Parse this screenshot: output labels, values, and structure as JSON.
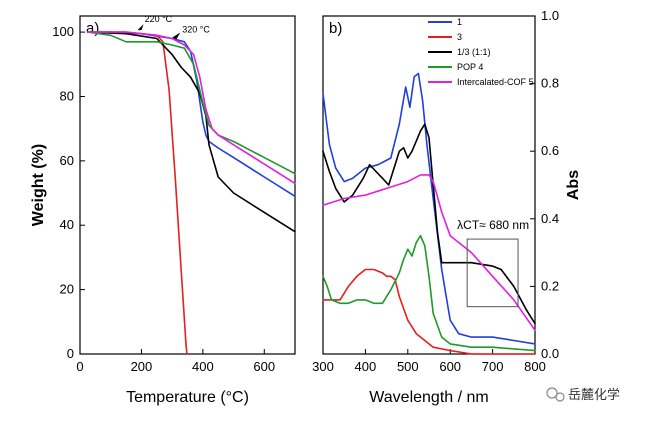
{
  "watermark": {
    "text": "岳麓化学"
  },
  "chart_data": [
    {
      "panel": "a)",
      "type": "line",
      "xlabel": "Temperature (°C)",
      "ylabel": "Weight (%)",
      "xlim": [
        0,
        700
      ],
      "ylim": [
        0,
        105
      ],
      "xticks": [
        0,
        200,
        400,
        600
      ],
      "yticks": [
        0,
        20,
        40,
        60,
        80,
        100
      ],
      "annotations": [
        {
          "text": "220 °C",
          "x": 220,
          "y": 100
        },
        {
          "text": "320 °C",
          "x": 320,
          "y": 98
        }
      ],
      "series": [
        {
          "name": "1",
          "color": "#1f3fe0",
          "x": [
            25,
            100,
            200,
            300,
            340,
            360,
            380,
            400,
            410,
            420,
            450,
            500,
            600,
            700
          ],
          "y": [
            100,
            100,
            99.5,
            98,
            97,
            94,
            85,
            72,
            68,
            66,
            64,
            61,
            55,
            49
          ]
        },
        {
          "name": "3",
          "color": "#e32020",
          "x": [
            25,
            150,
            250,
            270,
            290,
            310,
            330,
            345,
            348
          ],
          "y": [
            100,
            100,
            99,
            97,
            82,
            55,
            25,
            3,
            0
          ]
        },
        {
          "name": "1/3 (1:1)",
          "color": "#000000",
          "x": [
            25,
            150,
            250,
            300,
            330,
            360,
            390,
            410,
            420,
            450,
            500,
            600,
            700
          ],
          "y": [
            100,
            99.5,
            98,
            93,
            89,
            86,
            81,
            74,
            65,
            55,
            50,
            44,
            38
          ]
        },
        {
          "name": "POP 4",
          "color": "#1d9a2a",
          "x": [
            25,
            100,
            150,
            250,
            300,
            340,
            370,
            400,
            420,
            450,
            500,
            600,
            700
          ],
          "y": [
            100,
            99,
            97,
            97,
            96,
            95,
            90,
            78,
            71,
            68,
            66,
            61,
            56
          ]
        },
        {
          "name": "Intercalated-COF 5",
          "color": "#e020e0",
          "x": [
            25,
            150,
            250,
            300,
            340,
            370,
            390,
            410,
            430,
            450,
            500,
            600,
            700
          ],
          "y": [
            100,
            100,
            99,
            98,
            96,
            93,
            86,
            76,
            70,
            68,
            65,
            59,
            53
          ]
        }
      ]
    },
    {
      "panel": "b)",
      "type": "line",
      "xlabel": "Wavelength / nm",
      "ylabel": "Abs",
      "xlim": [
        300,
        800
      ],
      "ylim": [
        0,
        1.0
      ],
      "xticks": [
        300,
        400,
        500,
        600,
        700,
        800
      ],
      "yticks": [
        0.0,
        0.2,
        0.4,
        0.6,
        0.8,
        1.0
      ],
      "legend_position": "top-right",
      "annotation": {
        "text": "λCT≈ 680 nm",
        "box_x": [
          640,
          760
        ],
        "box_y": [
          0.14,
          0.34
        ]
      },
      "series": [
        {
          "name": "1",
          "color": "#1f3fe0",
          "x": [
            300,
            315,
            330,
            350,
            370,
            400,
            430,
            460,
            480,
            495,
            505,
            515,
            525,
            535,
            545,
            560,
            580,
            600,
            620,
            650,
            700,
            750,
            800
          ],
          "y": [
            0.77,
            0.62,
            0.55,
            0.51,
            0.52,
            0.55,
            0.56,
            0.58,
            0.68,
            0.79,
            0.73,
            0.82,
            0.83,
            0.75,
            0.62,
            0.46,
            0.25,
            0.1,
            0.06,
            0.05,
            0.05,
            0.04,
            0.03
          ]
        },
        {
          "name": "3",
          "color": "#e32020",
          "x": [
            300,
            320,
            340,
            360,
            380,
            400,
            420,
            440,
            450,
            460,
            470,
            480,
            500,
            520,
            540,
            560,
            600,
            650,
            700,
            800
          ],
          "y": [
            0.16,
            0.16,
            0.16,
            0.2,
            0.23,
            0.25,
            0.25,
            0.24,
            0.23,
            0.23,
            0.22,
            0.17,
            0.1,
            0.06,
            0.04,
            0.02,
            0.01,
            0.0,
            0.0,
            0.0
          ]
        },
        {
          "name": "1/3 (1:1)",
          "color": "#000000",
          "x": [
            300,
            315,
            330,
            350,
            370,
            395,
            410,
            425,
            440,
            455,
            470,
            480,
            490,
            500,
            510,
            520,
            530,
            540,
            550,
            560,
            570,
            580,
            600,
            650,
            700,
            720,
            750,
            780,
            800
          ],
          "y": [
            0.6,
            0.54,
            0.49,
            0.45,
            0.47,
            0.52,
            0.56,
            0.54,
            0.52,
            0.5,
            0.56,
            0.6,
            0.61,
            0.58,
            0.6,
            0.63,
            0.66,
            0.68,
            0.64,
            0.5,
            0.36,
            0.27,
            0.27,
            0.27,
            0.26,
            0.25,
            0.2,
            0.13,
            0.09
          ]
        },
        {
          "name": "POP 4",
          "color": "#1d9a2a",
          "x": [
            300,
            310,
            320,
            340,
            360,
            380,
            400,
            420,
            440,
            460,
            480,
            490,
            500,
            510,
            520,
            530,
            540,
            550,
            560,
            580,
            600,
            650,
            700,
            800
          ],
          "y": [
            0.23,
            0.2,
            0.16,
            0.15,
            0.15,
            0.16,
            0.16,
            0.15,
            0.15,
            0.19,
            0.24,
            0.28,
            0.31,
            0.29,
            0.33,
            0.35,
            0.32,
            0.23,
            0.12,
            0.05,
            0.03,
            0.02,
            0.02,
            0.01
          ]
        },
        {
          "name": "Intercalated-COF 5",
          "color": "#e020e0",
          "x": [
            300,
            350,
            400,
            450,
            500,
            530,
            550,
            560,
            580,
            600,
            650,
            700,
            750,
            800
          ],
          "y": [
            0.44,
            0.46,
            0.47,
            0.49,
            0.51,
            0.53,
            0.53,
            0.51,
            0.42,
            0.35,
            0.3,
            0.23,
            0.16,
            0.07
          ]
        }
      ]
    }
  ]
}
